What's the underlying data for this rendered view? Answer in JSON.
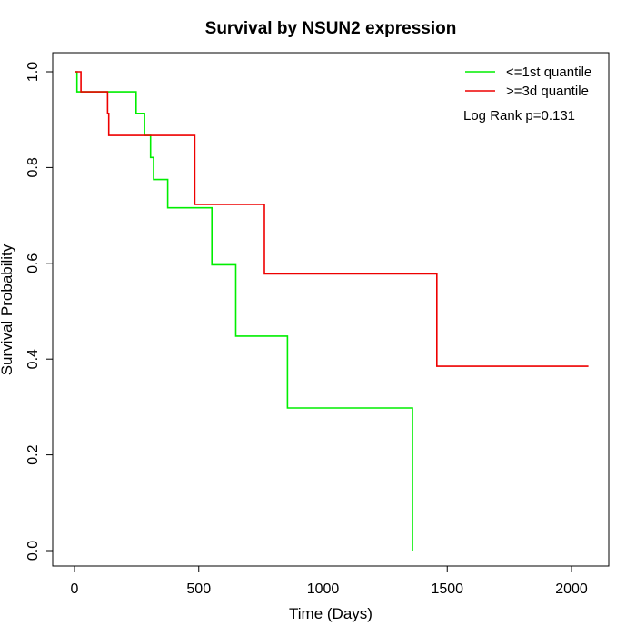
{
  "chart_data": {
    "type": "line",
    "title": "Survival by NSUN2 expression",
    "xlabel": "Time (Days)",
    "ylabel": "Survival Probability",
    "xlim": [
      0,
      2070
    ],
    "ylim": [
      0,
      1
    ],
    "x_ticks": [
      0,
      500,
      1000,
      1500,
      2000
    ],
    "x_tick_labels": [
      "0",
      "500",
      "1000",
      "1500",
      "2000"
    ],
    "y_ticks": [
      0,
      0.2,
      0.4,
      0.6,
      0.8,
      1.0
    ],
    "y_tick_labels": [
      "0.0",
      "0.2",
      "0.4",
      "0.6",
      "0.8",
      "1.0"
    ],
    "grid": false,
    "legend_position": "top-right",
    "annotation": "Log Rank p=0.131",
    "series": [
      {
        "name": "<=1st quantile",
        "color": "#00ee00",
        "step_points": [
          [
            0,
            1.0
          ],
          [
            10,
            1.0
          ],
          [
            10,
            0.958
          ],
          [
            248,
            0.958
          ],
          [
            248,
            0.913
          ],
          [
            282,
            0.913
          ],
          [
            282,
            0.867
          ],
          [
            306,
            0.867
          ],
          [
            306,
            0.821
          ],
          [
            318,
            0.821
          ],
          [
            318,
            0.775
          ],
          [
            375,
            0.775
          ],
          [
            375,
            0.716
          ],
          [
            553,
            0.716
          ],
          [
            553,
            0.597
          ],
          [
            649,
            0.597
          ],
          [
            649,
            0.448
          ],
          [
            857,
            0.448
          ],
          [
            857,
            0.298
          ],
          [
            1360,
            0.298
          ],
          [
            1360,
            0.0
          ]
        ]
      },
      {
        "name": ">=3d quantile",
        "color": "#ee0000",
        "step_points": [
          [
            0,
            1.0
          ],
          [
            26,
            1.0
          ],
          [
            26,
            0.958
          ],
          [
            133,
            0.958
          ],
          [
            133,
            0.913
          ],
          [
            138,
            0.913
          ],
          [
            138,
            0.867
          ],
          [
            484,
            0.867
          ],
          [
            484,
            0.723
          ],
          [
            764,
            0.723
          ],
          [
            764,
            0.578
          ],
          [
            1458,
            0.578
          ],
          [
            1458,
            0.385
          ],
          [
            2068,
            0.385
          ]
        ]
      }
    ]
  }
}
